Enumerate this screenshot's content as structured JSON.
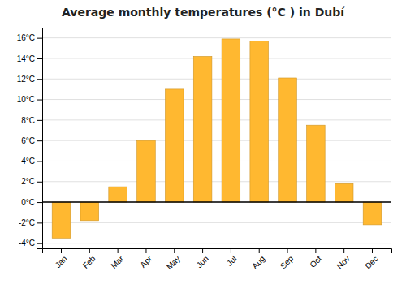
{
  "chart_data": {
    "type": "bar",
    "title": "Average monthly temperatures (°C ) in Dubí",
    "categories": [
      "Jan",
      "Feb",
      "Mar",
      "Apr",
      "May",
      "Jun",
      "Jul",
      "Aug",
      "Sep",
      "Oct",
      "Nov",
      "Dec"
    ],
    "values": [
      -3.5,
      -1.8,
      1.5,
      6.0,
      11.0,
      14.2,
      15.9,
      15.7,
      12.1,
      7.5,
      1.8,
      -2.2
    ],
    "color": "#FFB830",
    "ylim": [
      -4.5,
      17
    ],
    "yticks": [
      {
        "value": -4,
        "label": "-4°C"
      },
      {
        "value": -2,
        "label": "-2°C"
      },
      {
        "value": 0,
        "label": "0°C"
      },
      {
        "value": 2,
        "label": "2°C"
      },
      {
        "value": 4,
        "label": "4°C"
      },
      {
        "value": 6,
        "label": "6°C"
      },
      {
        "value": 8,
        "label": "8°C"
      },
      {
        "value": 10,
        "label": "10°C"
      },
      {
        "value": 12,
        "label": "12°C"
      },
      {
        "value": 14,
        "label": "14°C"
      },
      {
        "value": 16,
        "label": "16°C"
      }
    ],
    "grid": true
  }
}
